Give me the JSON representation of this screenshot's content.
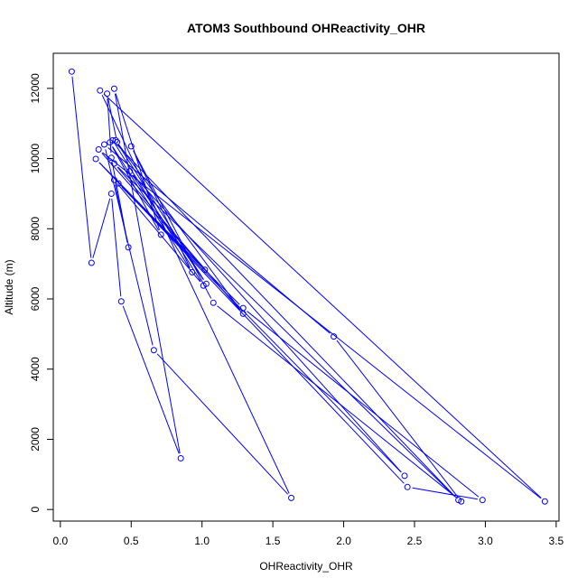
{
  "chart_data": {
    "type": "line",
    "title": "ATOM3 Southbound OHReactivity_OHR",
    "xlabel": "OHReactivity_OHR",
    "ylabel": "Altitude (m)",
    "xlim": [
      -0.05,
      3.52
    ],
    "ylim": [
      -330,
      13000
    ],
    "xticks": [
      0.0,
      0.5,
      1.0,
      1.5,
      2.0,
      2.5,
      3.0,
      3.5
    ],
    "xtick_labels": [
      "0.0",
      "0.5",
      "1.0",
      "1.5",
      "2.0",
      "2.5",
      "3.0",
      "3.5"
    ],
    "yticks": [
      0,
      2000,
      4000,
      6000,
      8000,
      10000,
      12000
    ],
    "ytick_labels": [
      "0",
      "2000",
      "4000",
      "6000",
      "8000",
      "10000",
      "12000"
    ],
    "series_color": "#0000ff",
    "series": [
      {
        "name": "OHReactivity_OHR",
        "points": [
          {
            "x": 0.08,
            "y": 12480
          },
          {
            "x": 0.22,
            "y": 7030
          },
          {
            "x": 0.36,
            "y": 9000
          },
          {
            "x": 0.43,
            "y": 5930
          },
          {
            "x": 0.85,
            "y": 1460
          },
          {
            "x": 0.38,
            "y": 11990
          },
          {
            "x": 0.71,
            "y": 7830
          },
          {
            "x": 0.35,
            "y": 10460
          },
          {
            "x": 0.93,
            "y": 6760
          },
          {
            "x": 0.5,
            "y": 10350
          },
          {
            "x": 1.08,
            "y": 5890
          },
          {
            "x": 2.83,
            "y": 230
          },
          {
            "x": 1.93,
            "y": 4930
          },
          {
            "x": 0.31,
            "y": 10400
          },
          {
            "x": 0.66,
            "y": 4540
          },
          {
            "x": 1.63,
            "y": 330
          },
          {
            "x": 0.28,
            "y": 11940
          },
          {
            "x": 3.42,
            "y": 230
          },
          {
            "x": 0.27,
            "y": 10260
          },
          {
            "x": 1.02,
            "y": 6830
          },
          {
            "x": 0.25,
            "y": 9990
          },
          {
            "x": 2.45,
            "y": 640
          },
          {
            "x": 2.98,
            "y": 270
          },
          {
            "x": 1.29,
            "y": 5740
          },
          {
            "x": 0.41,
            "y": 9290
          },
          {
            "x": 2.43,
            "y": 960
          },
          {
            "x": 0.49,
            "y": 9640
          },
          {
            "x": 1.03,
            "y": 6430
          },
          {
            "x": 0.39,
            "y": 10520
          },
          {
            "x": 1.29,
            "y": 5580
          },
          {
            "x": 0.38,
            "y": 9860
          },
          {
            "x": 2.81,
            "y": 270
          },
          {
            "x": 0.37,
            "y": 10520
          },
          {
            "x": 1.01,
            "y": 6380
          },
          {
            "x": 0.38,
            "y": 9390
          },
          {
            "x": 0.48,
            "y": 7470
          },
          {
            "x": 0.36,
            "y": 10020
          },
          {
            "x": 0.33,
            "y": 11850
          },
          {
            "x": 0.4,
            "y": 10470
          }
        ]
      }
    ]
  }
}
